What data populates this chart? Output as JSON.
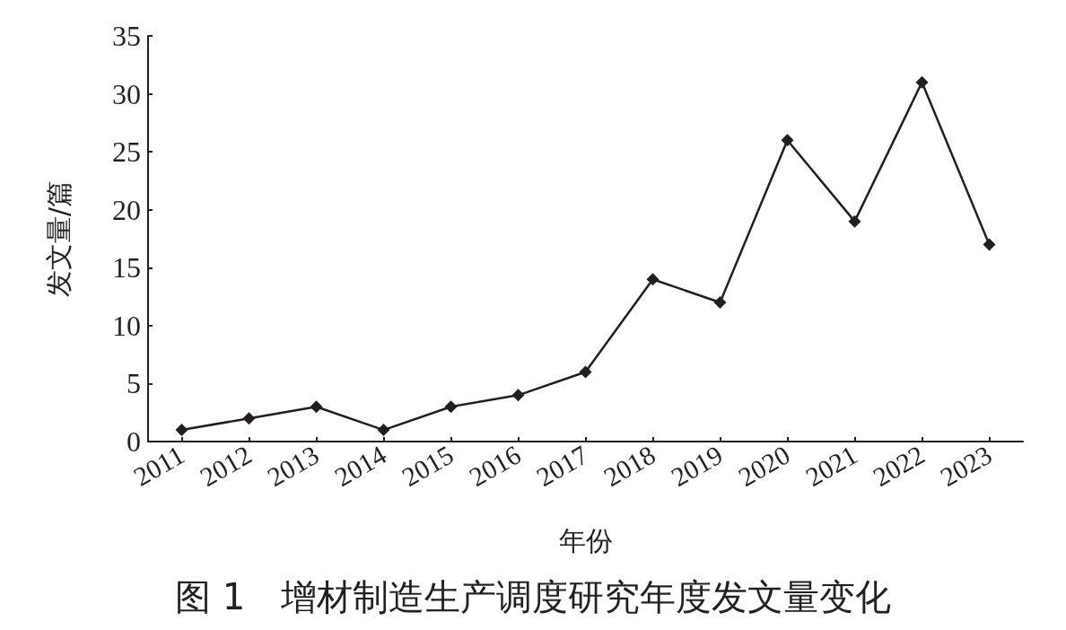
{
  "chart_data": {
    "type": "line",
    "title": "图 1　增材制造生产调度研究年度发文量变化",
    "xlabel": "年份",
    "ylabel": "发文量/篇",
    "categories": [
      "2011",
      "2012",
      "2013",
      "2014",
      "2015",
      "2016",
      "2017",
      "2018",
      "2019",
      "2020",
      "2021",
      "2022",
      "2023"
    ],
    "series": [
      {
        "color": "#231f20",
        "values": [
          1,
          2,
          3,
          1,
          3,
          4,
          6,
          14,
          12,
          26,
          19,
          31,
          17
        ]
      }
    ],
    "ylim": [
      0,
      35
    ],
    "yticks": [
      0,
      5,
      10,
      15,
      20,
      25,
      30,
      35
    ],
    "marker": "diamond",
    "line_style": "solid"
  }
}
